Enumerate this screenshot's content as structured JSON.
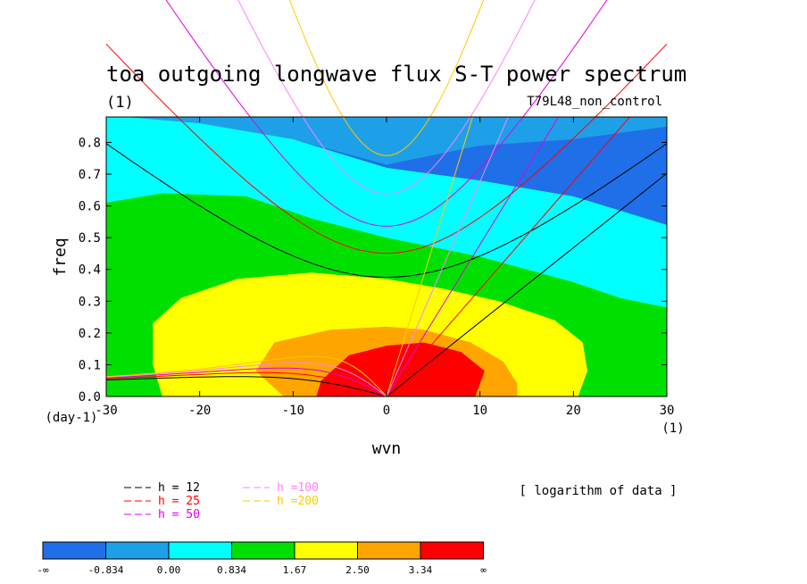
{
  "chart_data": {
    "type": "heatmap",
    "title": "toa outgoing longwave flux S-T power spectrum",
    "subtitle_left": "(1)",
    "subtitle_right": "T79L48_non_control",
    "xlabel": "wvn",
    "ylabel": "freq",
    "x_unit": "(1)",
    "y_unit": "(day-1)",
    "xlim": [
      -30,
      30
    ],
    "ylim": [
      0,
      0.88
    ],
    "x_ticks": [
      -30,
      -20,
      -10,
      0,
      10,
      20,
      30
    ],
    "x_tick_labels": [
      "-30",
      "-20",
      "-10",
      "0",
      "10",
      "20",
      "30"
    ],
    "y_ticks": [
      0,
      0.1,
      0.2,
      0.3,
      0.4,
      0.5,
      0.6,
      0.7,
      0.8
    ],
    "y_tick_labels": [
      "0.0",
      "0.1",
      "0.2",
      "0.3",
      "0.4",
      "0.5",
      "0.6",
      "0.7",
      "0.8"
    ],
    "note": "[ logarithm of data ]",
    "colorbar": {
      "labels": [
        "-∞",
        "-0.834",
        "0.00",
        "0.834",
        "1.67",
        "2.50",
        "3.34",
        "∞"
      ],
      "colors": [
        "#1f6fe8",
        "#1ea0e8",
        "#00ffff",
        "#00e000",
        "#ffff00",
        "#ffa500",
        "#ff0000"
      ]
    },
    "contour_fills": [
      {
        "level": "-0.834 to 0.00",
        "color": "#1ea0e8",
        "boundary": [
          [
            -30,
            0.88
          ],
          [
            30,
            0.88
          ],
          [
            30,
            0.85
          ],
          [
            20,
            0.81
          ],
          [
            10,
            0.79
          ],
          [
            0,
            0.73
          ],
          [
            -10,
            0.81
          ],
          [
            -20,
            0.86
          ],
          [
            -30,
            0.88
          ]
        ]
      },
      {
        "level": "0.00 to 0.834",
        "color": "#00ffff",
        "boundary": [
          [
            -30,
            0.88
          ],
          [
            -30,
            0.885
          ],
          [
            -20,
            0.86
          ],
          [
            -10,
            0.81
          ],
          [
            0,
            0.72
          ],
          [
            10,
            0.68
          ],
          [
            20,
            0.63
          ],
          [
            30,
            0.54
          ],
          [
            30,
            0
          ],
          [
            -30,
            0
          ]
        ]
      },
      {
        "level": "0.834 to 1.67",
        "color": "#00e000",
        "boundary": [
          [
            -30,
            0.61
          ],
          [
            -24,
            0.64
          ],
          [
            -15,
            0.63
          ],
          [
            -8,
            0.56
          ],
          [
            0,
            0.5
          ],
          [
            5,
            0.47
          ],
          [
            10,
            0.44
          ],
          [
            15,
            0.4
          ],
          [
            20,
            0.36
          ],
          [
            25,
            0.31
          ],
          [
            30,
            0.28
          ],
          [
            30,
            0
          ],
          [
            -30,
            0
          ]
        ]
      },
      {
        "level": "1.67 to 2.50",
        "color": "#ffff00",
        "boundary": [
          [
            -24,
            0
          ],
          [
            -25,
            0.1
          ],
          [
            -25,
            0.23
          ],
          [
            -22,
            0.31
          ],
          [
            -16,
            0.37
          ],
          [
            -8,
            0.39
          ],
          [
            0,
            0.37
          ],
          [
            6,
            0.34
          ],
          [
            12,
            0.3
          ],
          [
            18,
            0.24
          ],
          [
            21,
            0.17
          ],
          [
            21.5,
            0.08
          ],
          [
            20.5,
            0
          ]
        ]
      },
      {
        "level": "2.50 to 3.34",
        "color": "#ffa500",
        "boundary": [
          [
            -11,
            0
          ],
          [
            -14,
            0.08
          ],
          [
            -12,
            0.17
          ],
          [
            -6,
            0.21
          ],
          [
            0,
            0.22
          ],
          [
            4,
            0.21
          ],
          [
            9,
            0.17
          ],
          [
            12.5,
            0.11
          ],
          [
            14,
            0.04
          ],
          [
            14,
            0
          ]
        ]
      },
      {
        "level": "3.34 to inf",
        "color": "#ff0000",
        "boundary": [
          [
            -7.5,
            0
          ],
          [
            -7,
            0.05
          ],
          [
            -4,
            0.13
          ],
          [
            0,
            0.16
          ],
          [
            4,
            0.17
          ],
          [
            8,
            0.14
          ],
          [
            10.5,
            0.08
          ],
          [
            9.5,
            0
          ]
        ]
      }
    ],
    "series": [
      {
        "name": "h = 12",
        "color": "#000000"
      },
      {
        "name": "h = 25",
        "color": "#ff0000"
      },
      {
        "name": "h = 50",
        "color": "#e000e0"
      },
      {
        "name": "h =100",
        "color": "#ff80ff"
      },
      {
        "name": "h =200",
        "color": "#ffc800"
      }
    ]
  }
}
